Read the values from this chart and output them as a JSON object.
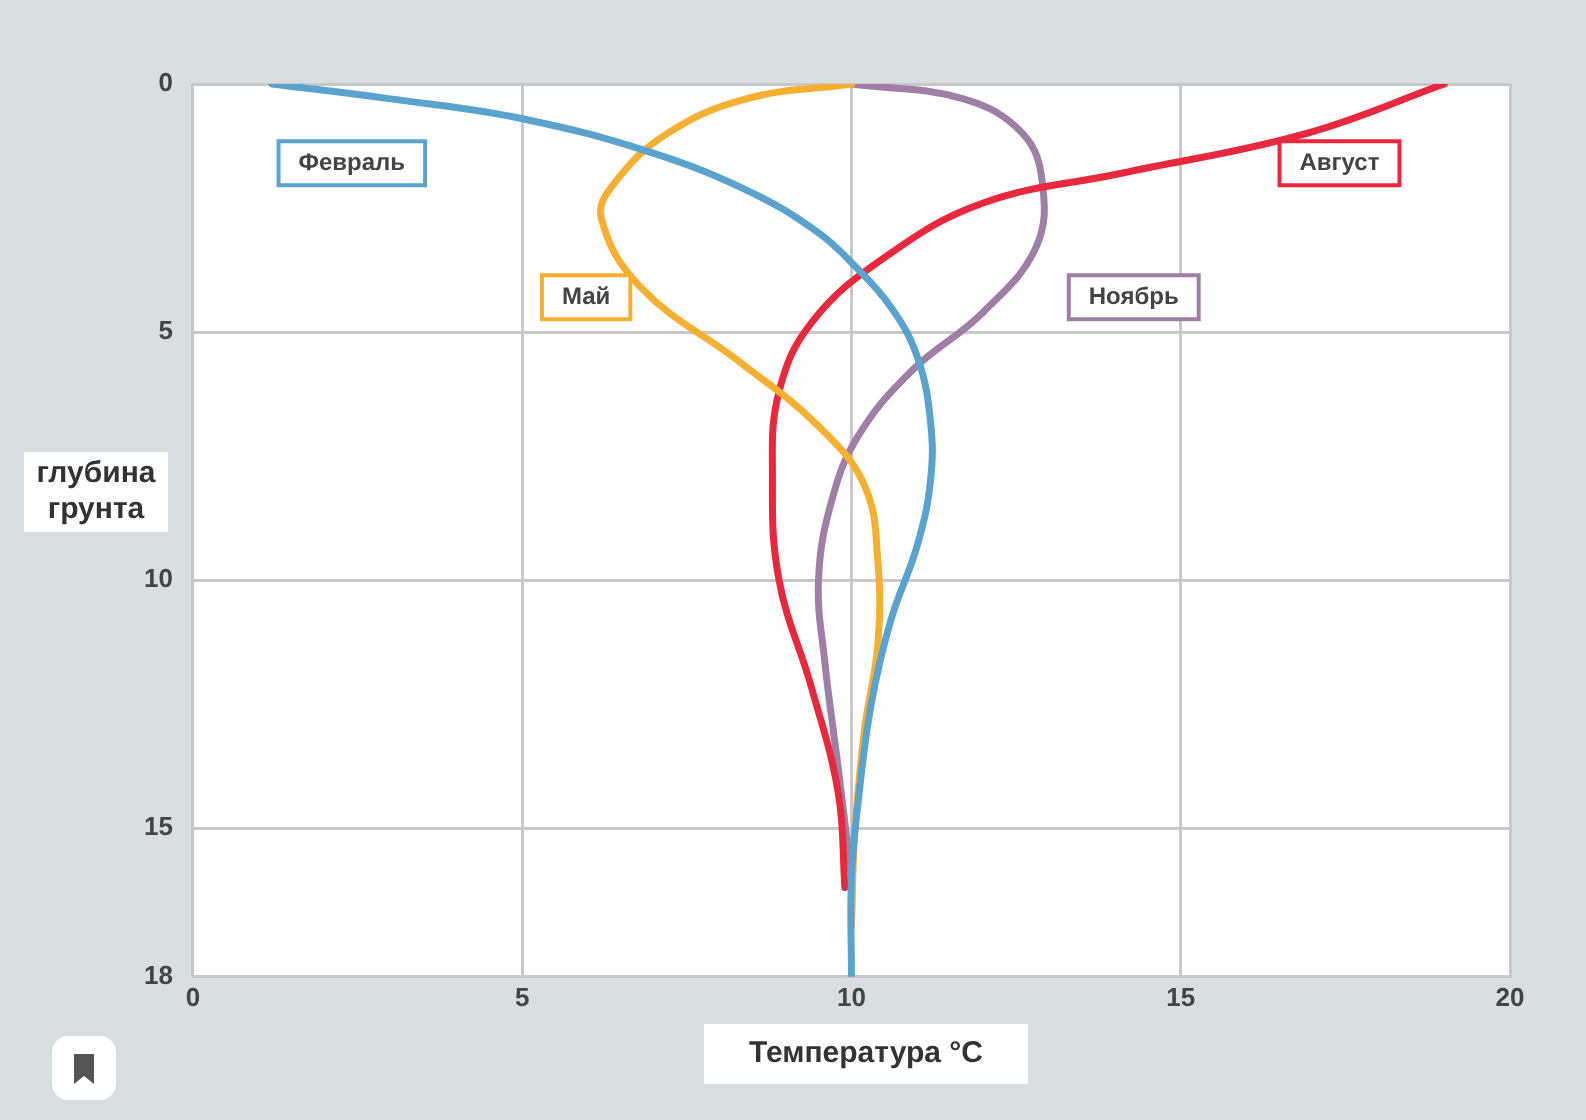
{
  "chart_data": {
    "type": "line",
    "xlabel": "Температура °C",
    "ylabel": "глубина грунта",
    "xlim": [
      0,
      20
    ],
    "xticks": [
      0,
      5,
      10,
      15,
      20
    ],
    "ylim": [
      18,
      0
    ],
    "yticks": [
      0,
      5,
      10,
      15,
      18
    ],
    "grid": true,
    "legend": false,
    "marker": "none",
    "line_style": "solid",
    "series": [
      {
        "name": "Февраль",
        "color": "#5ba3cf",
        "x": [
          1.2,
          3,
          5,
          7,
          8.5,
          9.5,
          10,
          10.6,
          11,
          11.2,
          11.2,
          11,
          10.6,
          10.3,
          10.1,
          10,
          10
        ],
        "values": [
          0,
          0.3,
          0.7,
          1.4,
          2.2,
          3,
          3.6,
          4.5,
          5.5,
          6.8,
          8,
          9.3,
          10.8,
          12.5,
          14.5,
          16,
          18
        ]
      },
      {
        "name": "Май",
        "color": "#f5b031",
        "x": [
          10,
          8.4,
          7.2,
          6.4,
          6.2,
          6.8,
          8.3,
          9.5,
          10.2,
          10.4,
          10.4,
          10.2,
          10.05,
          10
        ],
        "values": [
          0,
          0.3,
          1,
          2,
          2.7,
          4.1,
          5.6,
          6.9,
          8.1,
          9.6,
          11.3,
          13,
          15.1,
          17
        ]
      },
      {
        "name": "Август",
        "color": "#e8283c",
        "x": [
          19,
          16.9,
          14.1,
          12,
          10.5,
          9.4,
          8.9,
          8.8,
          8.9,
          9.4,
          9.8,
          9.9
        ],
        "values": [
          0,
          1,
          1.8,
          2.4,
          3.5,
          4.8,
          6.2,
          7.9,
          10,
          12.2,
          14.3,
          16.2
        ]
      },
      {
        "name": "Ноябрь",
        "color": "#a07fa6",
        "x": [
          10,
          11.7,
          12.6,
          12.9,
          12.8,
          12,
          10.9,
          10.1,
          9.7,
          9.5,
          9.6,
          9.8,
          10
        ],
        "values": [
          0,
          0.3,
          1,
          2,
          3.3,
          4.6,
          5.8,
          7.1,
          8.4,
          10,
          11.7,
          13.8,
          16
        ]
      }
    ]
  }
}
